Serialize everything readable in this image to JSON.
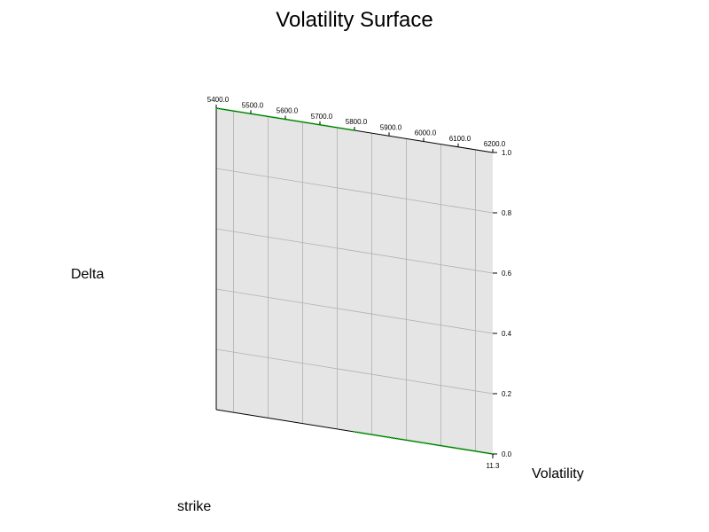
{
  "chart_data": {
    "type": "surface",
    "title": "Volatility Surface",
    "xlabel": "strike",
    "ylabel": "Volatility",
    "zlabel": "Delta",
    "x_ticks": [
      "5400.0",
      "5500.0",
      "5600.0",
      "5700.0",
      "5800.0",
      "5900.0",
      "6000.0",
      "6100.0",
      "6200.0"
    ],
    "x_range": [
      5400.0,
      6200.0
    ],
    "y_ticks": [
      "11.3"
    ],
    "y_value": 11.3,
    "z_ticks": [
      "0.0",
      "0.2",
      "0.4",
      "0.6",
      "0.8",
      "1.0"
    ],
    "z_range": [
      0.0,
      1.0
    ],
    "grid": true,
    "surface_color": "#e5e5e5",
    "series": [
      {
        "color": "#00cc00",
        "points": [
          {
            "strike": 5400,
            "delta": 1.0
          },
          {
            "strike": 5500,
            "delta": 1.0
          },
          {
            "strike": 5600,
            "delta": 1.0
          },
          {
            "strike": 5700,
            "delta": 1.0
          },
          {
            "strike": 5800,
            "delta": 1.0
          },
          {
            "strike": 5800,
            "delta": 0.0
          },
          {
            "strike": 5900,
            "delta": 0.0
          },
          {
            "strike": 6000,
            "delta": 0.0
          },
          {
            "strike": 6100,
            "delta": 0.0
          },
          {
            "strike": 6200,
            "delta": 0.0
          }
        ]
      }
    ]
  }
}
